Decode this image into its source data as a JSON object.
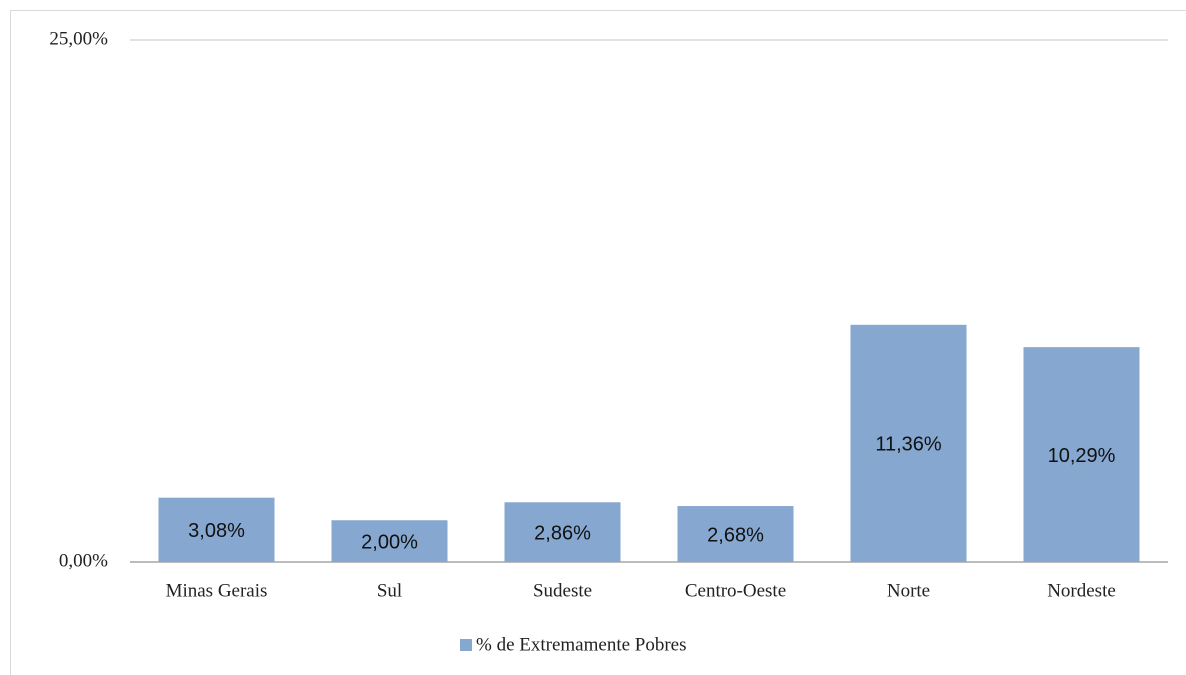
{
  "chart_data": {
    "type": "bar",
    "categories": [
      "Minas Gerais",
      "Sul",
      "Sudeste",
      "Centro-Oeste",
      "Norte",
      "Nordeste"
    ],
    "series": [
      {
        "name": "% de Extremamente Pobres",
        "color": "#86a7d0",
        "values": [
          3.08,
          2.0,
          2.86,
          2.68,
          11.36,
          10.29
        ],
        "value_labels": [
          "3,08%",
          "2,00%",
          "2,86%",
          "2,68%",
          "11,36%",
          "10,29%"
        ]
      }
    ],
    "ylim": [
      0,
      25
    ],
    "yticks": [
      {
        "value": 0,
        "label": "0,00%"
      },
      {
        "value": 25,
        "label": "25,00%"
      }
    ],
    "grid": true,
    "legend": "bottom"
  }
}
